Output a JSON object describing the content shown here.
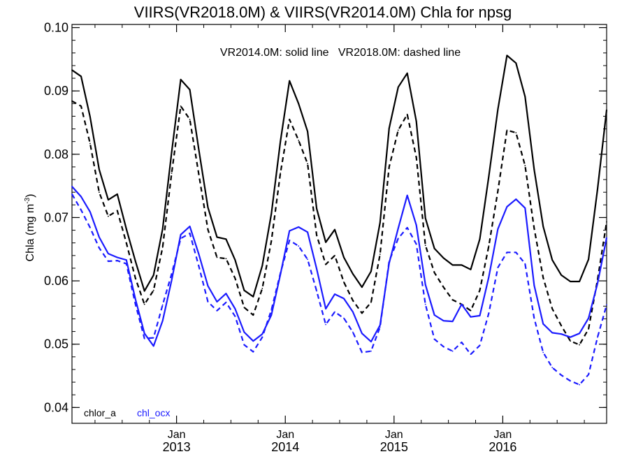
{
  "chart_data": {
    "type": "line",
    "title": "VIIRS(VR2018.0M) & VIIRS(VR2014.0M)  Chla for npsg",
    "ylabel_main": "Chla (mg m",
    "ylabel_sup": "-3",
    "ylabel_close": ")",
    "annotation": "VR2014.0M: solid line   VR2018.0M: dashed line",
    "ylim": [
      0.0375,
      0.1005
    ],
    "xlim": [
      "2012-01-15",
      "2016-12-15"
    ],
    "x_ticks": [
      {
        "date": "2013-01-01",
        "label_top": "Jan",
        "label_bottom": "2013"
      },
      {
        "date": "2014-01-01",
        "label_top": "Jan",
        "label_bottom": "2014"
      },
      {
        "date": "2015-01-01",
        "label_top": "Jan",
        "label_bottom": "2015"
      },
      {
        "date": "2016-01-01",
        "label_top": "Jan",
        "label_bottom": "2016"
      }
    ],
    "y_ticks": [
      "0.04",
      "0.05",
      "0.06",
      "0.07",
      "0.08",
      "0.09",
      "0.10"
    ],
    "x": [
      "2012-01",
      "2012-02",
      "2012-03",
      "2012-04",
      "2012-05",
      "2012-06",
      "2012-07",
      "2012-08",
      "2012-09",
      "2012-10",
      "2012-11",
      "2012-12",
      "2013-01",
      "2013-02",
      "2013-03",
      "2013-04",
      "2013-05",
      "2013-06",
      "2013-07",
      "2013-08",
      "2013-09",
      "2013-10",
      "2013-11",
      "2013-12",
      "2014-01",
      "2014-02",
      "2014-03",
      "2014-04",
      "2014-05",
      "2014-06",
      "2014-07",
      "2014-08",
      "2014-09",
      "2014-10",
      "2014-11",
      "2014-12",
      "2015-01",
      "2015-02",
      "2015-03",
      "2015-04",
      "2015-05",
      "2015-06",
      "2015-07",
      "2015-08",
      "2015-09",
      "2015-10",
      "2015-11",
      "2015-12",
      "2016-01",
      "2016-02",
      "2016-03",
      "2016-04",
      "2016-05",
      "2016-06",
      "2016-07",
      "2016-08",
      "2016-09",
      "2016-10",
      "2016-11",
      "2016-12"
    ],
    "series": [
      {
        "name": "chlor_a",
        "version": "VR2014.0M",
        "style": "solid",
        "color": "#000000",
        "values": [
          0.0933,
          0.0923,
          0.0859,
          0.0776,
          0.0728,
          0.0737,
          0.0682,
          0.0631,
          0.0584,
          0.0609,
          0.0682,
          0.0803,
          0.0918,
          0.0902,
          0.0807,
          0.0716,
          0.0669,
          0.0666,
          0.0633,
          0.0585,
          0.0575,
          0.0624,
          0.0706,
          0.082,
          0.0916,
          0.088,
          0.0836,
          0.0714,
          0.0661,
          0.0681,
          0.0637,
          0.0611,
          0.059,
          0.0615,
          0.0692,
          0.0841,
          0.0906,
          0.0928,
          0.0852,
          0.0699,
          0.0651,
          0.0636,
          0.0625,
          0.0625,
          0.0618,
          0.0666,
          0.0765,
          0.0871,
          0.0956,
          0.0944,
          0.0891,
          0.0776,
          0.0686,
          0.0633,
          0.0609,
          0.0599,
          0.0599,
          0.0634,
          0.0745,
          0.087
        ]
      },
      {
        "name": "chlor_a",
        "version": "VR2018.0M",
        "style": "dashed",
        "color": "#000000",
        "values": [
          0.0884,
          0.0876,
          0.0817,
          0.074,
          0.0702,
          0.0711,
          0.066,
          0.0604,
          0.0563,
          0.0585,
          0.0653,
          0.077,
          0.0876,
          0.0855,
          0.0768,
          0.0681,
          0.0637,
          0.0635,
          0.0604,
          0.0558,
          0.0546,
          0.0588,
          0.0663,
          0.077,
          0.0855,
          0.0822,
          0.0785,
          0.0672,
          0.0626,
          0.064,
          0.0598,
          0.0569,
          0.0549,
          0.0566,
          0.0642,
          0.078,
          0.0838,
          0.0863,
          0.0795,
          0.0656,
          0.0613,
          0.059,
          0.057,
          0.0563,
          0.0553,
          0.0585,
          0.0655,
          0.0742,
          0.0838,
          0.0834,
          0.0782,
          0.0683,
          0.0605,
          0.0556,
          0.0529,
          0.0505,
          0.0499,
          0.0524,
          0.0602,
          0.0693
        ]
      },
      {
        "name": "chl_ocx",
        "version": "VR2014.0M",
        "style": "solid",
        "color": "#1a1aff",
        "values": [
          0.0749,
          0.0733,
          0.0709,
          0.0669,
          0.0643,
          0.0637,
          0.0633,
          0.0571,
          0.0517,
          0.0497,
          0.0537,
          0.0601,
          0.0673,
          0.0686,
          0.0642,
          0.0592,
          0.0567,
          0.058,
          0.0556,
          0.0519,
          0.0505,
          0.0516,
          0.0546,
          0.061,
          0.0679,
          0.0685,
          0.0677,
          0.0619,
          0.0556,
          0.0579,
          0.0572,
          0.0551,
          0.0517,
          0.0504,
          0.053,
          0.0628,
          0.0683,
          0.0735,
          0.0688,
          0.0594,
          0.0546,
          0.0537,
          0.0536,
          0.0563,
          0.0543,
          0.0545,
          0.0606,
          0.0682,
          0.0717,
          0.0729,
          0.0715,
          0.0593,
          0.0532,
          0.0518,
          0.0516,
          0.0511,
          0.0517,
          0.0541,
          0.0596,
          0.0668
        ]
      },
      {
        "name": "chl_ocx",
        "version": "VR2018.0M",
        "style": "dashed",
        "color": "#1a1aff",
        "values": [
          0.0737,
          0.0712,
          0.0684,
          0.0652,
          0.0631,
          0.0632,
          0.0627,
          0.0563,
          0.0509,
          0.051,
          0.0562,
          0.0611,
          0.0667,
          0.0675,
          0.0623,
          0.0567,
          0.0553,
          0.0566,
          0.0544,
          0.0499,
          0.0488,
          0.0511,
          0.0554,
          0.0612,
          0.0664,
          0.0655,
          0.0634,
          0.0584,
          0.0531,
          0.0551,
          0.0541,
          0.0519,
          0.0487,
          0.0489,
          0.0527,
          0.0631,
          0.0667,
          0.0684,
          0.0658,
          0.0563,
          0.0508,
          0.0496,
          0.0489,
          0.0503,
          0.0484,
          0.0498,
          0.0549,
          0.0621,
          0.0645,
          0.0645,
          0.0627,
          0.0541,
          0.0487,
          0.0463,
          0.0451,
          0.0442,
          0.0436,
          0.0452,
          0.0511,
          0.0562
        ]
      }
    ],
    "legend": [
      {
        "label": "chlor_a",
        "color": "#000000"
      },
      {
        "label": "chl_ocx",
        "color": "#1a1aff"
      }
    ],
    "legend_placement": "bottom-left",
    "grid": false
  }
}
